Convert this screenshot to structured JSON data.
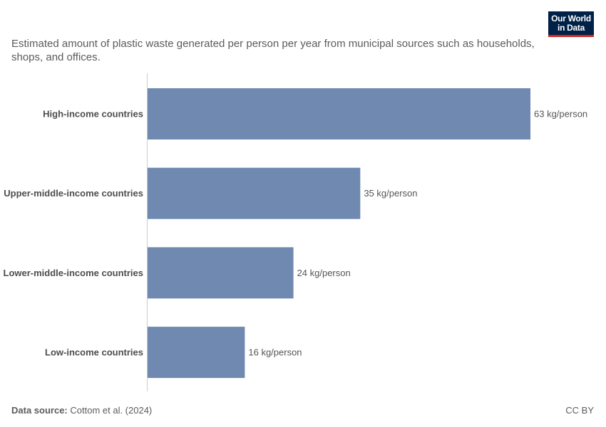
{
  "subtitle": "Estimated amount of plastic waste generated per person per year from municipal sources such as households, shops, and offices.",
  "logo": {
    "line1": "Our World",
    "line2": "in Data"
  },
  "footer": {
    "source_label": "Data source:",
    "source_value": "Cottom et al. (2024)",
    "license": "CC BY"
  },
  "colors": {
    "bar": "#6f89b1",
    "axis": "#cccccc",
    "logo_bg": "#002147",
    "logo_accent": "#ce261e"
  },
  "chart_data": {
    "type": "bar",
    "orientation": "horizontal",
    "categories": [
      "High-income countries",
      "Upper-middle-income countries",
      "Lower-middle-income countries",
      "Low-income countries"
    ],
    "values": [
      63,
      35,
      24,
      16
    ],
    "value_labels": [
      "63 kg/person",
      "35 kg/person",
      "24 kg/person",
      "16 kg/person"
    ],
    "unit": "kg/person",
    "xlim": [
      0,
      63
    ]
  }
}
